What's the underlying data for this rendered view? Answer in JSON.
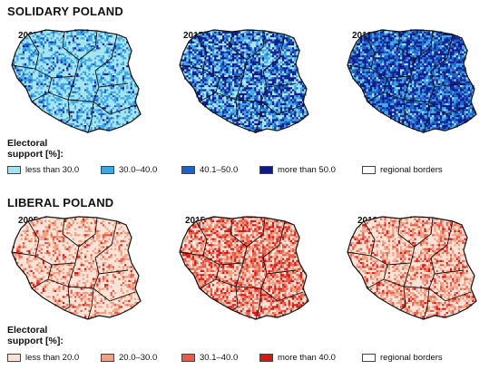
{
  "panels": [
    {
      "heading": "SOLIDARY POLAND",
      "years": [
        "2005",
        "2015",
        "2019"
      ],
      "legend_title_lines": [
        "Electoral",
        "support [%]:"
      ],
      "legend": [
        {
          "label": "less than 30.0",
          "color": "#a4e4f0"
        },
        {
          "label": "30.0–40.0",
          "color": "#3ea8e6"
        },
        {
          "label": "40.1–50.0",
          "color": "#1c62c8"
        },
        {
          "label": "more than 50.0",
          "color": "#0c1a8e"
        },
        {
          "label": "regional borders",
          "color": "#ffffff"
        }
      ],
      "map_mix": [
        [
          0.56,
          0.3,
          0.09,
          0.05
        ],
        [
          0.26,
          0.25,
          0.16,
          0.33
        ],
        [
          0.06,
          0.24,
          0.3,
          0.4
        ]
      ]
    },
    {
      "heading": "LIBERAL POLAND",
      "years": [
        "2005",
        "2015",
        "2019"
      ],
      "legend_title_lines": [
        "Electoral",
        "support [%]:"
      ],
      "legend": [
        {
          "label": "less than 20.0",
          "color": "#fbe3d6"
        },
        {
          "label": "20.0–30.0",
          "color": "#f4a084"
        },
        {
          "label": "30.1–40.0",
          "color": "#ea5a48"
        },
        {
          "label": "more than 40.0",
          "color": "#d81616"
        },
        {
          "label": "regional borders",
          "color": "#ffffff"
        }
      ],
      "map_mix": [
        [
          0.64,
          0.24,
          0.09,
          0.03
        ],
        [
          0.33,
          0.26,
          0.22,
          0.19
        ],
        [
          0.5,
          0.28,
          0.15,
          0.07
        ]
      ]
    }
  ]
}
